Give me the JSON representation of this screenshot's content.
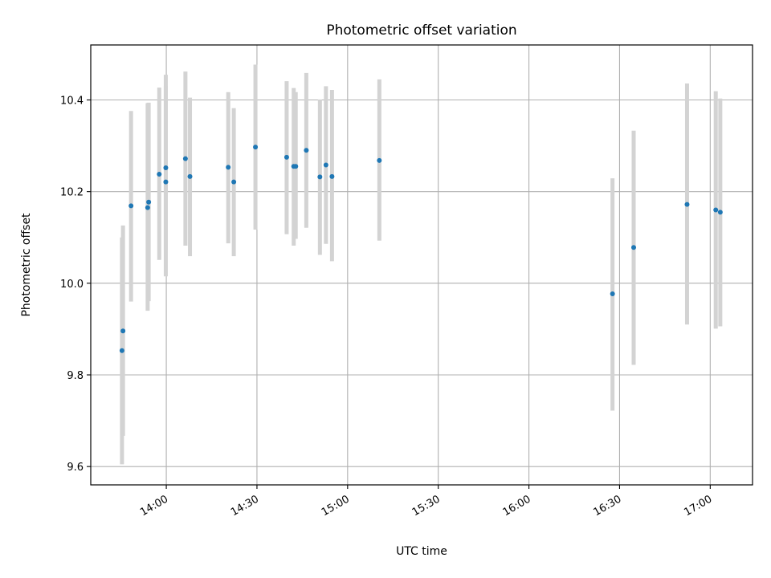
{
  "chart_data": {
    "type": "scatter",
    "title": "Photometric offset variation",
    "xlabel": "UTC time",
    "ylabel": "Photometric offset",
    "x_ticks": [
      "14:00",
      "14:30",
      "15:00",
      "15:30",
      "16:00",
      "16:30",
      "17:00"
    ],
    "y_ticks": [
      "9.6",
      "9.8",
      "10.0",
      "10.2",
      "10.4"
    ],
    "xlim": [
      "13:35",
      "17:14"
    ],
    "ylim": [
      9.56,
      10.52
    ],
    "grid": true,
    "colors": {
      "point": "#1f77b4",
      "errorbar": "#d3d3d3",
      "grid": "#b0b0b0"
    },
    "points": [
      {
        "x": "13:45:20",
        "y": 9.853,
        "yerr_low": 9.605,
        "yerr_high": 10.1
      },
      {
        "x": "13:45:40",
        "y": 9.896,
        "yerr_low": 9.667,
        "yerr_high": 10.126
      },
      {
        "x": "13:48:20",
        "y": 10.169,
        "yerr_low": 9.96,
        "yerr_high": 10.376
      },
      {
        "x": "13:53:50",
        "y": 10.165,
        "yerr_low": 9.94,
        "yerr_high": 10.393
      },
      {
        "x": "13:54:10",
        "y": 10.177,
        "yerr_low": 9.961,
        "yerr_high": 10.394
      },
      {
        "x": "13:57:40",
        "y": 10.238,
        "yerr_low": 10.051,
        "yerr_high": 10.427
      },
      {
        "x": "13:59:50",
        "y": 10.252,
        "yerr_low": 10.072,
        "yerr_high": 10.431
      },
      {
        "x": "13:59:50",
        "y": 10.221,
        "yerr_low": 10.015,
        "yerr_high": 10.455
      },
      {
        "x": "14:06:20",
        "y": 10.272,
        "yerr_low": 10.082,
        "yerr_high": 10.462
      },
      {
        "x": "14:07:50",
        "y": 10.233,
        "yerr_low": 10.059,
        "yerr_high": 10.405
      },
      {
        "x": "14:20:30",
        "y": 10.253,
        "yerr_low": 10.087,
        "yerr_high": 10.417
      },
      {
        "x": "14:22:20",
        "y": 10.221,
        "yerr_low": 10.059,
        "yerr_high": 10.382
      },
      {
        "x": "14:29:30",
        "y": 10.297,
        "yerr_low": 10.117,
        "yerr_high": 10.477
      },
      {
        "x": "14:39:50",
        "y": 10.275,
        "yerr_low": 10.107,
        "yerr_high": 10.441
      },
      {
        "x": "14:42:10",
        "y": 10.255,
        "yerr_low": 10.082,
        "yerr_high": 10.426
      },
      {
        "x": "14:42:50",
        "y": 10.255,
        "yerr_low": 10.097,
        "yerr_high": 10.417
      },
      {
        "x": "14:46:20",
        "y": 10.29,
        "yerr_low": 10.121,
        "yerr_high": 10.459
      },
      {
        "x": "14:50:50",
        "y": 10.232,
        "yerr_low": 10.062,
        "yerr_high": 10.401
      },
      {
        "x": "14:52:50",
        "y": 10.258,
        "yerr_low": 10.086,
        "yerr_high": 10.43
      },
      {
        "x": "14:54:50",
        "y": 10.233,
        "yerr_low": 10.048,
        "yerr_high": 10.422
      },
      {
        "x": "15:10:30",
        "y": 10.268,
        "yerr_low": 10.093,
        "yerr_high": 10.445
      },
      {
        "x": "16:27:40",
        "y": 9.977,
        "yerr_low": 9.722,
        "yerr_high": 10.229
      },
      {
        "x": "16:34:40",
        "y": 10.078,
        "yerr_low": 9.822,
        "yerr_high": 10.333
      },
      {
        "x": "16:52:20",
        "y": 10.172,
        "yerr_low": 9.91,
        "yerr_high": 10.436
      },
      {
        "x": "17:01:50",
        "y": 10.16,
        "yerr_low": 9.901,
        "yerr_high": 10.419
      },
      {
        "x": "17:03:20",
        "y": 10.155,
        "yerr_low": 9.906,
        "yerr_high": 10.403
      }
    ]
  }
}
